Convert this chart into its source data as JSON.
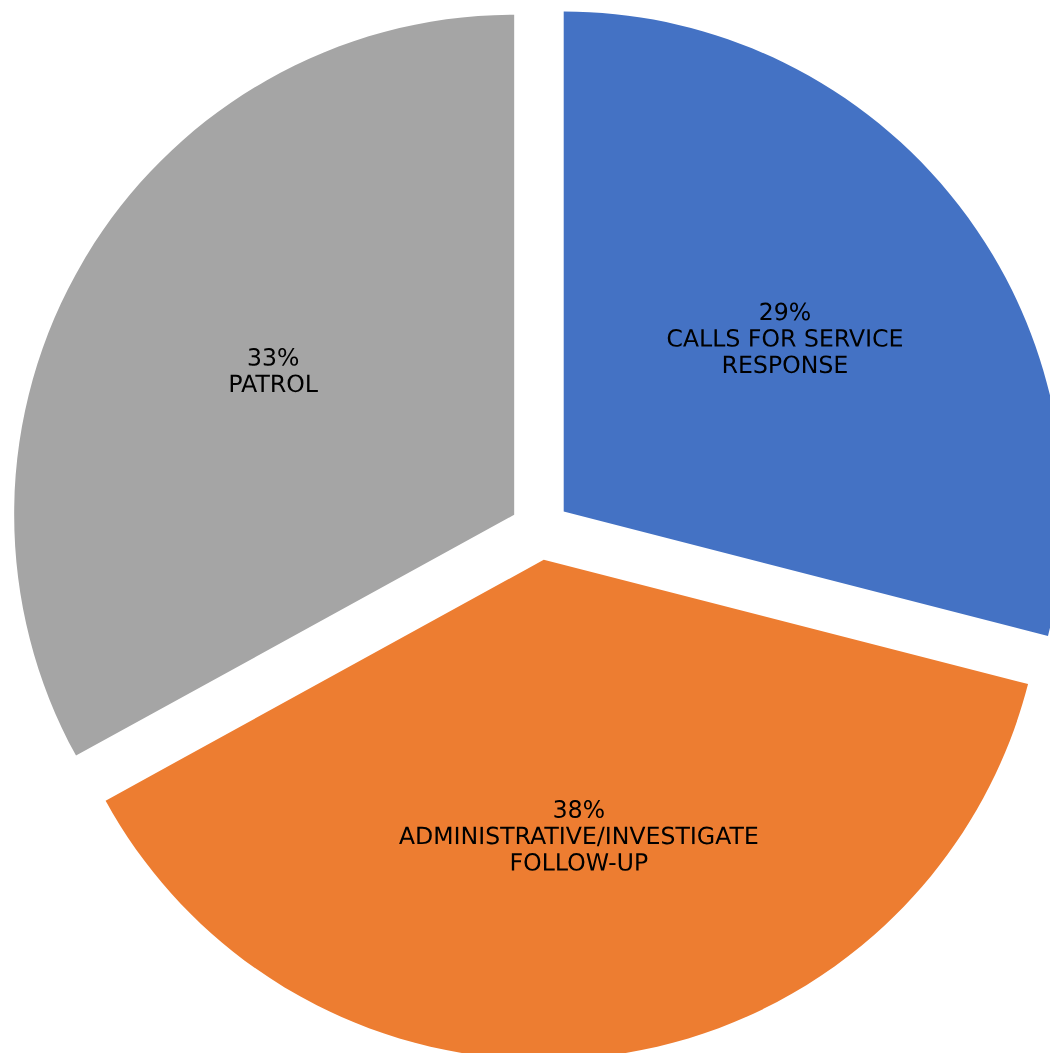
{
  "chart_data": {
    "type": "pie",
    "categories": [
      "CALLS FOR SERVICE\nRESPONSE",
      "ADMINISTRATIVE/INVESTIGATE\nFOLLOW-UP",
      "PATROL"
    ],
    "values": [
      29,
      38,
      33
    ],
    "value_labels": [
      "29%",
      "38%",
      "33%"
    ],
    "colors": [
      "#4472c4",
      "#ed7d31",
      "#a5a5a5"
    ],
    "legend": false
  }
}
